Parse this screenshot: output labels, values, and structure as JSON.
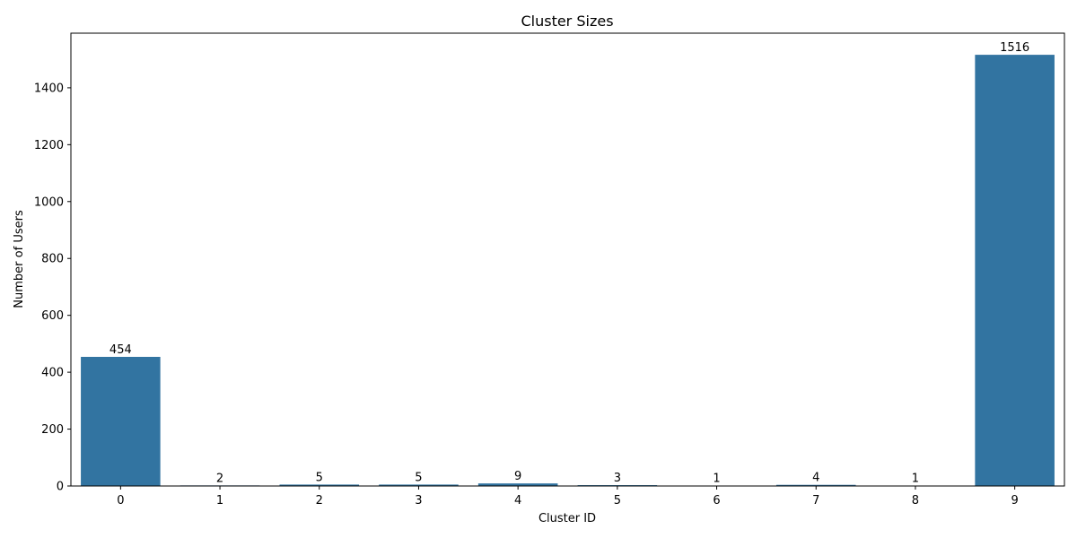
{
  "chart_data": {
    "type": "bar",
    "title": "Cluster Sizes",
    "xlabel": "Cluster ID",
    "ylabel": "Number of Users",
    "categories": [
      "0",
      "1",
      "2",
      "3",
      "4",
      "5",
      "6",
      "7",
      "8",
      "9"
    ],
    "values": [
      454,
      2,
      5,
      5,
      9,
      3,
      1,
      4,
      1,
      1516
    ],
    "data_labels": [
      "454",
      "2",
      "5",
      "5",
      "9",
      "3",
      "1",
      "4",
      "1",
      "1516"
    ],
    "ylim": [
      0,
      1592
    ],
    "yticks": [
      0,
      200,
      400,
      600,
      800,
      1000,
      1200,
      1400
    ],
    "ytick_labels": [
      "0",
      "200",
      "400",
      "600",
      "800",
      "1000",
      "1200",
      "1400"
    ],
    "grid": false,
    "bar_color": "#3274a1"
  }
}
